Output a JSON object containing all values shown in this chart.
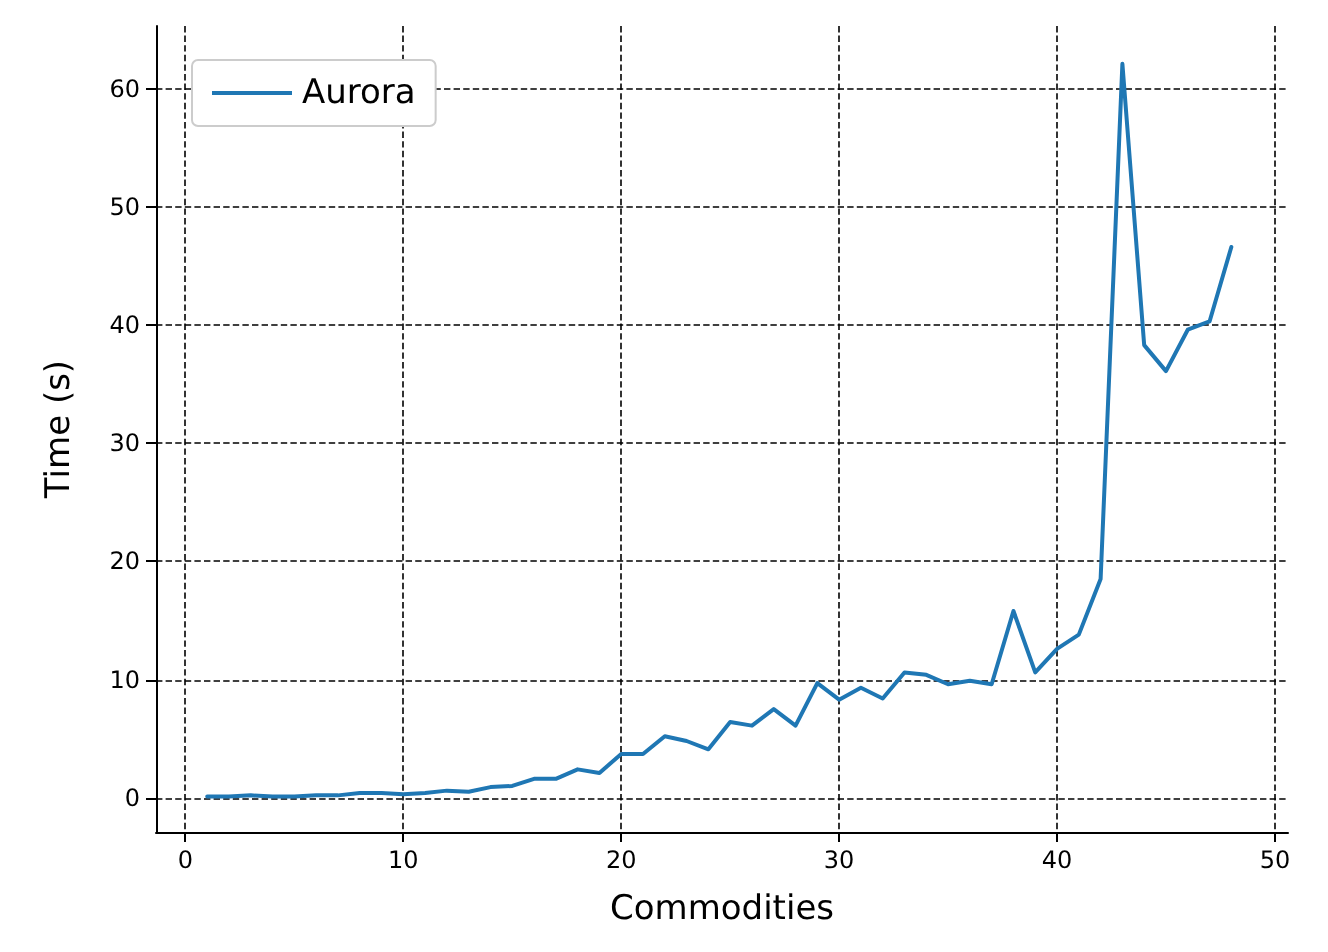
{
  "chart_data": {
    "type": "line",
    "xlabel": "Commodities",
    "ylabel": "Time (s)",
    "x": [
      1,
      2,
      3,
      4,
      5,
      6,
      7,
      8,
      9,
      10,
      11,
      12,
      13,
      14,
      15,
      16,
      17,
      18,
      19,
      20,
      21,
      22,
      23,
      24,
      25,
      26,
      27,
      28,
      29,
      30,
      31,
      32,
      33,
      34,
      35,
      36,
      37,
      38,
      39,
      40,
      41,
      42,
      43,
      44,
      45,
      46,
      47,
      48
    ],
    "series": [
      {
        "name": "Aurora",
        "color": "#1f77b4",
        "values": [
          0.1,
          0.1,
          0.2,
          0.1,
          0.1,
          0.2,
          0.2,
          0.4,
          0.4,
          0.3,
          0.4,
          0.6,
          0.5,
          0.9,
          1.0,
          1.6,
          1.6,
          2.4,
          2.1,
          3.7,
          3.7,
          5.2,
          4.8,
          4.1,
          6.4,
          6.1,
          7.5,
          6.1,
          9.7,
          8.3,
          9.3,
          8.4,
          10.6,
          10.4,
          9.6,
          9.9,
          9.6,
          15.8,
          10.6,
          12.6,
          13.8,
          18.5,
          62.1,
          38.3,
          36.1,
          39.6,
          40.3,
          46.6
        ]
      }
    ],
    "xlim": [
      -1.35,
      50.6
    ],
    "ylim": [
      -2.9,
      65.3
    ],
    "xticks": [
      0,
      10,
      20,
      30,
      40,
      50
    ],
    "yticks": [
      0,
      10,
      20,
      30,
      40,
      50,
      60
    ],
    "grid": true,
    "legend": "top left",
    "marker": "none",
    "line_style": "solid"
  }
}
